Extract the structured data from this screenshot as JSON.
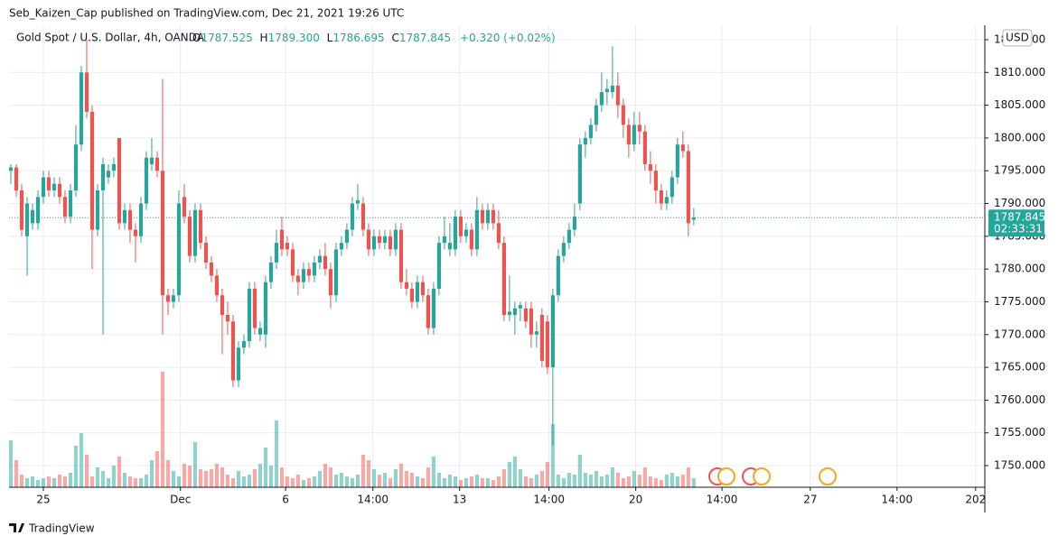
{
  "header": "Seb_Kaizen_Cap published on TradingView.com, Dec 21, 2021 19:26 UTC",
  "footer": "TradingView",
  "chart_data": {
    "type": "candlestick",
    "title": "Gold Spot / U.S. Dollar, 4h, OANDA",
    "legend": {
      "o_label": "O",
      "o": 1787.525,
      "h_label": "H",
      "h": 1789.3,
      "h_text": "1789.300",
      "l_label": "L",
      "l": 1786.695,
      "c_label": "C",
      "c": 1787.845,
      "change": "+0.320 (+0.02%)"
    },
    "currency": "USD",
    "last_price": 1787.845,
    "countdown": "02:33:31",
    "up_color": "#26a69a",
    "down_color": "#ef5350",
    "grid": true,
    "ylim": [
      1746.7,
      1817.2
    ],
    "yticks": [
      {
        "value": 1750,
        "label": "1750.000"
      },
      {
        "value": 1755,
        "label": "1755.000"
      },
      {
        "value": 1760,
        "label": "1760.000"
      },
      {
        "value": 1765,
        "label": "1765.000"
      },
      {
        "value": 1770,
        "label": "1770.000"
      },
      {
        "value": 1775,
        "label": "1775.000"
      },
      {
        "value": 1780,
        "label": "1780.000"
      },
      {
        "value": 1785,
        "label": "1785.000"
      },
      {
        "value": 1790,
        "label": "1790.000"
      },
      {
        "value": 1795,
        "label": "1795.000"
      },
      {
        "value": 1800,
        "label": "1800.000"
      },
      {
        "value": 1805,
        "label": "1805.000"
      },
      {
        "value": 1810,
        "label": "1810.000"
      },
      {
        "value": 1815,
        "label": "1815.000"
      }
    ],
    "xlim": [
      -0.33,
      179.7
    ],
    "xticks": [
      {
        "value": 6,
        "label": "25"
      },
      {
        "value": 31.3,
        "label": "Dec"
      },
      {
        "value": 50.7,
        "label": "6"
      },
      {
        "value": 66.8,
        "label": "14:00"
      },
      {
        "value": 82.8,
        "label": "13"
      },
      {
        "value": 99.3,
        "label": "14:00"
      },
      {
        "value": 115.3,
        "label": "20"
      },
      {
        "value": 131.2,
        "label": "14:00"
      },
      {
        "value": 147.5,
        "label": "27"
      },
      {
        "value": 163.5,
        "label": "14:00"
      },
      {
        "value": 178,
        "label": "202"
      }
    ],
    "vlim": [
      0,
      130
    ],
    "ohlc": [
      [
        1795,
        1796,
        1793,
        1795.5
      ],
      [
        1795.5,
        1796,
        1791,
        1792
      ],
      [
        1792,
        1793,
        1785,
        1786
      ],
      [
        1785,
        1791,
        1779,
        1790
      ],
      [
        1787,
        1790,
        1786,
        1789
      ],
      [
        1787,
        1792,
        1786,
        1791
      ],
      [
        1791,
        1795,
        1790,
        1794
      ],
      [
        1794,
        1795,
        1791,
        1792
      ],
      [
        1792,
        1794,
        1791,
        1793
      ],
      [
        1793,
        1794,
        1790,
        1791
      ],
      [
        1791,
        1792,
        1787,
        1788
      ],
      [
        1788,
        1793,
        1787,
        1792
      ],
      [
        1792,
        1802,
        1791,
        1799
      ],
      [
        1799,
        1811,
        1798,
        1810
      ],
      [
        1810,
        1815,
        1803,
        1804
      ],
      [
        1804,
        1805,
        1780,
        1786
      ],
      [
        1786,
        1793,
        1785,
        1792
      ],
      [
        1792,
        1797,
        1770,
        1796
      ],
      [
        1794,
        1796,
        1793,
        1795
      ],
      [
        1795,
        1797,
        1794,
        1796
      ],
      [
        1800,
        1800,
        1786,
        1787
      ],
      [
        1787,
        1790,
        1786,
        1789
      ],
      [
        1789,
        1790,
        1784,
        1786
      ],
      [
        1786,
        1787,
        1781,
        1785
      ],
      [
        1785,
        1791,
        1784,
        1790
      ],
      [
        1790,
        1798,
        1789,
        1797
      ],
      [
        1796,
        1800,
        1795,
        1797
      ],
      [
        1797,
        1798,
        1794,
        1795
      ],
      [
        1795,
        1809,
        1770,
        1776
      ],
      [
        1776,
        1777,
        1773,
        1775
      ],
      [
        1775,
        1777,
        1774,
        1776
      ],
      [
        1776,
        1792,
        1775,
        1790
      ],
      [
        1791,
        1793,
        1787,
        1788
      ],
      [
        1788,
        1789,
        1781,
        1782
      ],
      [
        1782,
        1790,
        1781,
        1789
      ],
      [
        1789,
        1790,
        1783,
        1784
      ],
      [
        1784,
        1785,
        1780,
        1781
      ],
      [
        1781,
        1782,
        1778,
        1779
      ],
      [
        1779,
        1780,
        1775,
        1776
      ],
      [
        1776,
        1777,
        1767,
        1773
      ],
      [
        1773,
        1775,
        1770,
        1772
      ],
      [
        1772,
        1773,
        1762,
        1763
      ],
      [
        1763,
        1769,
        1762,
        1768
      ],
      [
        1768,
        1770,
        1767,
        1769
      ],
      [
        1769,
        1778,
        1768,
        1777
      ],
      [
        1777,
        1778,
        1770,
        1771
      ],
      [
        1770,
        1772,
        1769,
        1771
      ],
      [
        1770,
        1779,
        1768,
        1778
      ],
      [
        1778,
        1782,
        1777,
        1781
      ],
      [
        1781,
        1786,
        1780,
        1784
      ],
      [
        1786,
        1788,
        1782,
        1783
      ],
      [
        1784,
        1785,
        1782,
        1783
      ],
      [
        1783,
        1784,
        1778,
        1779
      ],
      [
        1779,
        1780,
        1776,
        1778
      ],
      [
        1778,
        1781,
        1777,
        1780
      ],
      [
        1780,
        1781,
        1778,
        1779
      ],
      [
        1779,
        1782,
        1778,
        1781
      ],
      [
        1781,
        1783,
        1780,
        1782
      ],
      [
        1782,
        1784,
        1779,
        1780
      ],
      [
        1780,
        1781,
        1774,
        1776
      ],
      [
        1776,
        1784,
        1775,
        1783
      ],
      [
        1783,
        1785,
        1782,
        1784
      ],
      [
        1784,
        1787,
        1783,
        1786
      ],
      [
        1786,
        1791,
        1785,
        1790
      ],
      [
        1790,
        1793,
        1789,
        1790.5
      ],
      [
        1790,
        1791,
        1785,
        1786
      ],
      [
        1786,
        1787,
        1782,
        1783
      ],
      [
        1783,
        1786,
        1782,
        1785
      ],
      [
        1785,
        1786,
        1783,
        1784
      ],
      [
        1784,
        1786,
        1783,
        1785
      ],
      [
        1785,
        1786,
        1782,
        1783
      ],
      [
        1783,
        1787,
        1782,
        1786
      ],
      [
        1786,
        1787,
        1777,
        1778
      ],
      [
        1778,
        1780,
        1776,
        1777
      ],
      [
        1777,
        1778,
        1774,
        1775
      ],
      [
        1775,
        1779,
        1774,
        1778
      ],
      [
        1778,
        1779,
        1775,
        1776
      ],
      [
        1776,
        1777,
        1770,
        1771
      ],
      [
        1771,
        1778,
        1770,
        1777
      ],
      [
        1777,
        1785,
        1776,
        1784
      ],
      [
        1784,
        1788,
        1783,
        1785
      ],
      [
        1783,
        1787,
        1782,
        1784
      ],
      [
        1783,
        1789,
        1782,
        1788
      ],
      [
        1788,
        1789,
        1784,
        1785
      ],
      [
        1785,
        1787,
        1784,
        1786
      ],
      [
        1786,
        1787,
        1782,
        1783
      ],
      [
        1783,
        1791,
        1782,
        1789
      ],
      [
        1789,
        1790,
        1786,
        1787
      ],
      [
        1787,
        1790,
        1786,
        1789
      ],
      [
        1789,
        1790,
        1786,
        1787
      ],
      [
        1787,
        1789,
        1783,
        1784
      ],
      [
        1784,
        1785,
        1772,
        1773
      ],
      [
        1773,
        1779,
        1772,
        1773.5
      ],
      [
        1773,
        1775,
        1770,
        1774
      ],
      [
        1774,
        1775,
        1772,
        1774.5
      ],
      [
        1774,
        1775,
        1771,
        1772
      ],
      [
        1774,
        1775,
        1768,
        1770
      ],
      [
        1770,
        1772,
        1768,
        1770.5
      ],
      [
        1773,
        1774,
        1765,
        1766
      ],
      [
        1772,
        1773,
        1764,
        1765
      ],
      [
        1765,
        1777,
        1753,
        1776
      ],
      [
        1776,
        1783,
        1775,
        1782
      ],
      [
        1782,
        1785,
        1781,
        1784
      ],
      [
        1784,
        1787,
        1783,
        1786
      ],
      [
        1786,
        1790,
        1785,
        1788
      ],
      [
        1790,
        1800,
        1789,
        1799
      ],
      [
        1799,
        1801,
        1797,
        1800
      ],
      [
        1800,
        1803,
        1799,
        1802
      ],
      [
        1802,
        1806,
        1801,
        1805
      ],
      [
        1805,
        1810,
        1804,
        1807
      ],
      [
        1807,
        1809,
        1805,
        1807.5
      ],
      [
        1807,
        1814,
        1806,
        1808
      ],
      [
        1808,
        1810,
        1803,
        1805
      ],
      [
        1805,
        1806,
        1800,
        1802
      ],
      [
        1802,
        1803,
        1797,
        1799
      ],
      [
        1799,
        1804,
        1798,
        1802
      ],
      [
        1802,
        1804,
        1799,
        1801
      ],
      [
        1801,
        1802,
        1795,
        1796
      ],
      [
        1796,
        1798,
        1793,
        1795
      ],
      [
        1795,
        1796,
        1790,
        1792
      ],
      [
        1792,
        1793,
        1789,
        1790
      ],
      [
        1790,
        1792,
        1789,
        1791
      ],
      [
        1791,
        1795,
        1790,
        1794
      ],
      [
        1794,
        1800,
        1793,
        1799
      ],
      [
        1799,
        1801,
        1797,
        1798
      ],
      [
        1798,
        1799,
        1785,
        1787
      ],
      [
        1787.525,
        1789.3,
        1786.695,
        1787.845
      ]
    ],
    "volume": [
      52,
      30,
      14,
      10,
      12,
      8,
      10,
      12,
      10,
      14,
      12,
      16,
      46,
      60,
      36,
      12,
      22,
      18,
      10,
      24,
      34,
      16,
      12,
      10,
      10,
      14,
      30,
      40,
      128,
      30,
      18,
      12,
      26,
      24,
      50,
      20,
      18,
      20,
      26,
      22,
      14,
      10,
      18,
      12,
      14,
      20,
      26,
      44,
      24,
      74,
      22,
      12,
      10,
      14,
      8,
      10,
      12,
      18,
      26,
      22,
      14,
      16,
      12,
      10,
      14,
      36,
      30,
      20,
      14,
      16,
      10,
      20,
      26,
      18,
      16,
      12,
      10,
      22,
      34,
      16,
      10,
      14,
      12,
      8,
      10,
      12,
      14,
      10,
      10,
      8,
      12,
      20,
      28,
      34,
      20,
      12,
      10,
      14,
      18,
      28,
      70,
      14,
      10,
      16,
      14,
      36,
      16,
      14,
      18,
      12,
      14,
      22,
      16,
      10,
      12,
      18,
      14,
      22,
      12,
      10,
      8,
      14,
      16,
      12,
      14,
      22,
      10
    ]
  }
}
